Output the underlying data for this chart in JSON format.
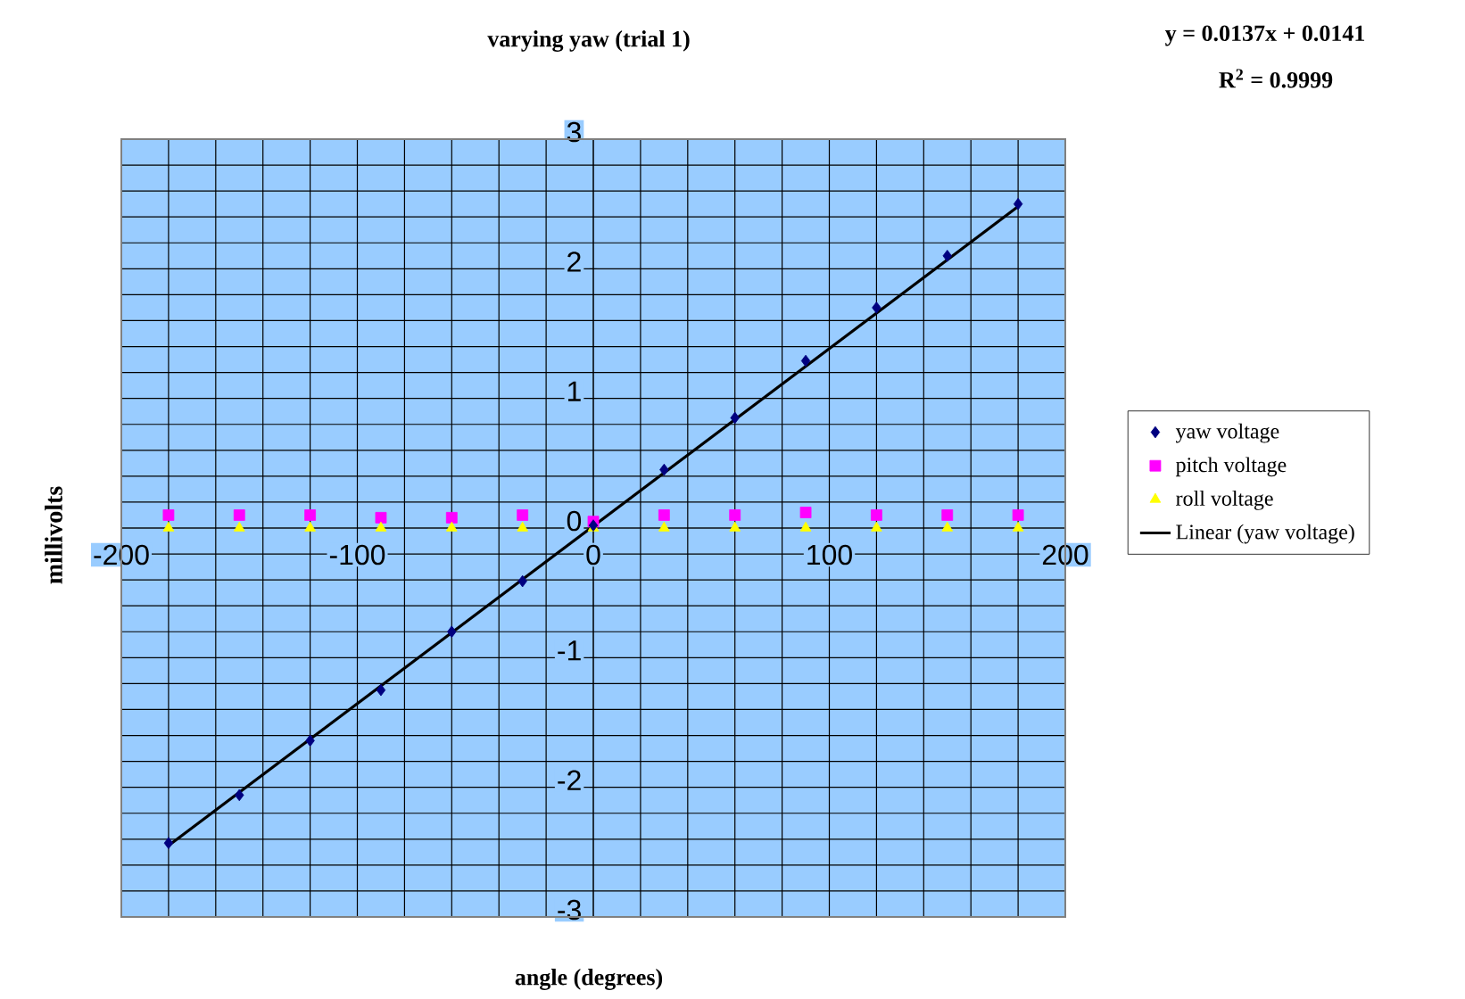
{
  "chart_data": {
    "type": "scatter",
    "title": "varying yaw (trial 1)",
    "xlabel": "angle (degrees)",
    "ylabel": "millivolts",
    "annotations": [
      "y = 0.0137x + 0.0141",
      "R$^{2}$ = 0.9999"
    ],
    "xlim": [
      -200,
      200
    ],
    "ylim": [
      -3,
      3
    ],
    "xticks": [
      -200,
      -100,
      0,
      100,
      200
    ],
    "yticks": [
      -3,
      -2,
      -1,
      0,
      1,
      2,
      3
    ],
    "grid": true,
    "legend": "right",
    "series": [
      {
        "name": "yaw voltage",
        "color": "#000080",
        "marker": "diamond",
        "x": [
          -180,
          -150,
          -120,
          -90,
          -60,
          -30,
          0,
          30,
          60,
          90,
          120,
          150,
          180
        ],
        "values": [
          -2.43,
          -2.06,
          -1.64,
          -1.25,
          -0.8,
          -0.41,
          0.02,
          0.45,
          0.85,
          1.29,
          1.7,
          2.1,
          2.5
        ]
      },
      {
        "name": "pitch voltage",
        "color": "#ff00ff",
        "marker": "square",
        "x": [
          -180,
          -150,
          -120,
          -90,
          -60,
          -30,
          0,
          30,
          60,
          90,
          120,
          150,
          180
        ],
        "values": [
          0.1,
          0.1,
          0.1,
          0.08,
          0.08,
          0.1,
          0.05,
          0.1,
          0.1,
          0.12,
          0.1,
          0.1,
          0.1
        ]
      },
      {
        "name": "roll voltage",
        "color": "#ffff00",
        "marker": "triangle",
        "x": [
          -180,
          -150,
          -120,
          -90,
          -60,
          -30,
          0,
          30,
          60,
          90,
          120,
          150,
          180
        ],
        "values": [
          0,
          0,
          0,
          0,
          0,
          0,
          0,
          0,
          0,
          0,
          0,
          0,
          0
        ]
      },
      {
        "name": "Linear (yaw voltage)",
        "type": "line",
        "color": "#000000",
        "marker": "none",
        "x": [
          -180,
          180
        ],
        "values": [
          -2.45,
          2.48
        ]
      }
    ]
  }
}
